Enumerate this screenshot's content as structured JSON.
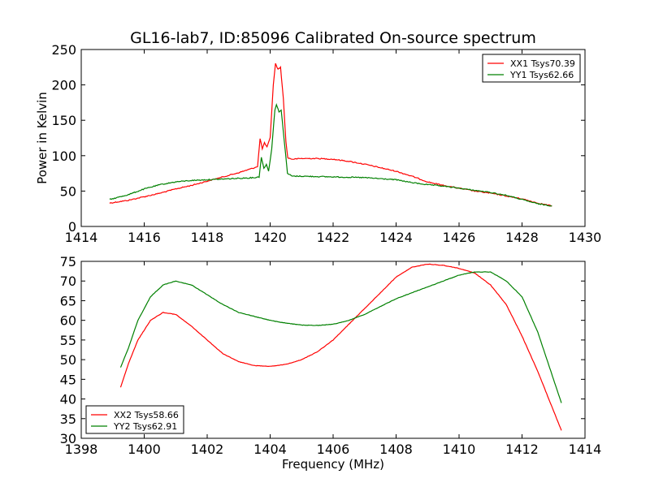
{
  "title": "GL16-lab7, ID:85096 Calibrated On-source spectrum",
  "colors": {
    "red": "#ff0000",
    "green": "#008000"
  },
  "chart_data": [
    {
      "type": "line",
      "ylabel": "Power in Kelvin",
      "xlabel": "",
      "xlim": [
        1414,
        1430
      ],
      "ylim": [
        0,
        250
      ],
      "xticks": [
        1414,
        1416,
        1418,
        1420,
        1422,
        1424,
        1426,
        1428,
        1430
      ],
      "yticks": [
        0,
        50,
        100,
        150,
        200,
        250
      ],
      "legend_position": "top-right",
      "series": [
        {
          "name": "XX1 Tsys70.39",
          "color": "#ff0000",
          "points": [
            [
              1414.9,
              33
            ],
            [
              1415.5,
              37
            ],
            [
              1416,
              42
            ],
            [
              1416.5,
              47
            ],
            [
              1417,
              53
            ],
            [
              1417.5,
              58
            ],
            [
              1418,
              64
            ],
            [
              1418.5,
              70
            ],
            [
              1419,
              76
            ],
            [
              1419.5,
              83
            ],
            [
              1419.6,
              85
            ],
            [
              1419.68,
              124
            ],
            [
              1419.75,
              110
            ],
            [
              1419.82,
              118
            ],
            [
              1419.9,
              112
            ],
            [
              1420.0,
              125
            ],
            [
              1420.1,
              200
            ],
            [
              1420.17,
              230
            ],
            [
              1420.25,
              222
            ],
            [
              1420.33,
              225
            ],
            [
              1420.42,
              180
            ],
            [
              1420.5,
              120
            ],
            [
              1420.56,
              97
            ],
            [
              1420.7,
              95
            ],
            [
              1421,
              96
            ],
            [
              1421.5,
              96
            ],
            [
              1422,
              95
            ],
            [
              1422.5,
              92
            ],
            [
              1423,
              88
            ],
            [
              1423.5,
              83
            ],
            [
              1424,
              78
            ],
            [
              1424.5,
              71
            ],
            [
              1425,
              63
            ],
            [
              1425.5,
              58
            ],
            [
              1426,
              54
            ],
            [
              1426.5,
              50
            ],
            [
              1427,
              47
            ],
            [
              1427.5,
              43
            ],
            [
              1428,
              39
            ],
            [
              1428.5,
              33
            ],
            [
              1428.95,
              29
            ]
          ]
        },
        {
          "name": "YY1 Tsys62.66",
          "color": "#008000",
          "points": [
            [
              1414.9,
              38
            ],
            [
              1415.5,
              45
            ],
            [
              1416,
              53
            ],
            [
              1416.5,
              59
            ],
            [
              1417,
              63
            ],
            [
              1417.5,
              65
            ],
            [
              1418,
              66
            ],
            [
              1418.5,
              67
            ],
            [
              1419,
              68
            ],
            [
              1419.5,
              69
            ],
            [
              1419.65,
              70
            ],
            [
              1419.72,
              98
            ],
            [
              1419.8,
              82
            ],
            [
              1419.88,
              88
            ],
            [
              1419.95,
              78
            ],
            [
              1420.05,
              110
            ],
            [
              1420.15,
              165
            ],
            [
              1420.2,
              172
            ],
            [
              1420.28,
              162
            ],
            [
              1420.35,
              165
            ],
            [
              1420.45,
              120
            ],
            [
              1420.55,
              75
            ],
            [
              1420.7,
              71
            ],
            [
              1421,
              71
            ],
            [
              1422,
              70
            ],
            [
              1423,
              69
            ],
            [
              1424,
              66
            ],
            [
              1424.5,
              62
            ],
            [
              1425,
              59
            ],
            [
              1425.5,
              57
            ],
            [
              1426,
              54
            ],
            [
              1426.5,
              51
            ],
            [
              1427,
              48
            ],
            [
              1427.5,
              44
            ],
            [
              1428,
              38
            ],
            [
              1428.5,
              32
            ],
            [
              1428.95,
              29
            ]
          ]
        }
      ]
    },
    {
      "type": "line",
      "xlabel": "Frequency (MHz)",
      "ylabel": "",
      "xlim": [
        1398,
        1414
      ],
      "ylim": [
        30,
        75
      ],
      "xticks": [
        1398,
        1400,
        1402,
        1404,
        1406,
        1408,
        1410,
        1412,
        1414
      ],
      "yticks": [
        30,
        35,
        40,
        45,
        50,
        55,
        60,
        65,
        70,
        75
      ],
      "legend_position": "bottom-left",
      "series": [
        {
          "name": "XX2 Tsys58.66",
          "color": "#ff0000",
          "points": [
            [
              1399.25,
              43
            ],
            [
              1399.5,
              49
            ],
            [
              1399.8,
              55
            ],
            [
              1400.2,
              60
            ],
            [
              1400.6,
              62
            ],
            [
              1401,
              61.5
            ],
            [
              1401.5,
              58.5
            ],
            [
              1402,
              55
            ],
            [
              1402.5,
              51.5
            ],
            [
              1403,
              49.5
            ],
            [
              1403.5,
              48.5
            ],
            [
              1404,
              48.3
            ],
            [
              1404.5,
              48.8
            ],
            [
              1405,
              50
            ],
            [
              1405.5,
              52
            ],
            [
              1406,
              55
            ],
            [
              1406.5,
              59
            ],
            [
              1407,
              63
            ],
            [
              1407.5,
              67
            ],
            [
              1408,
              71
            ],
            [
              1408.5,
              73.5
            ],
            [
              1409,
              74.3
            ],
            [
              1409.5,
              74
            ],
            [
              1410,
              73.2
            ],
            [
              1410.5,
              72
            ],
            [
              1411,
              69
            ],
            [
              1411.5,
              64
            ],
            [
              1412,
              56
            ],
            [
              1412.5,
              47
            ],
            [
              1413,
              37
            ],
            [
              1413.25,
              32
            ]
          ]
        },
        {
          "name": "YY2 Tsys62.91",
          "color": "#008000",
          "points": [
            [
              1399.25,
              48
            ],
            [
              1399.5,
              53
            ],
            [
              1399.8,
              60
            ],
            [
              1400.2,
              66
            ],
            [
              1400.6,
              69
            ],
            [
              1401,
              70
            ],
            [
              1401.5,
              69
            ],
            [
              1402,
              66.5
            ],
            [
              1402.5,
              64
            ],
            [
              1403,
              62
            ],
            [
              1403.5,
              61
            ],
            [
              1404,
              60
            ],
            [
              1404.5,
              59.3
            ],
            [
              1405,
              58.8
            ],
            [
              1405.5,
              58.7
            ],
            [
              1406,
              59
            ],
            [
              1406.5,
              60
            ],
            [
              1407,
              61.5
            ],
            [
              1407.5,
              63.5
            ],
            [
              1408,
              65.5
            ],
            [
              1408.5,
              67
            ],
            [
              1409,
              68.5
            ],
            [
              1409.5,
              70
            ],
            [
              1410,
              71.5
            ],
            [
              1410.5,
              72.3
            ],
            [
              1411,
              72.3
            ],
            [
              1411.5,
              70
            ],
            [
              1412,
              66
            ],
            [
              1412.5,
              57
            ],
            [
              1413,
              45
            ],
            [
              1413.25,
              39
            ]
          ]
        }
      ]
    }
  ]
}
